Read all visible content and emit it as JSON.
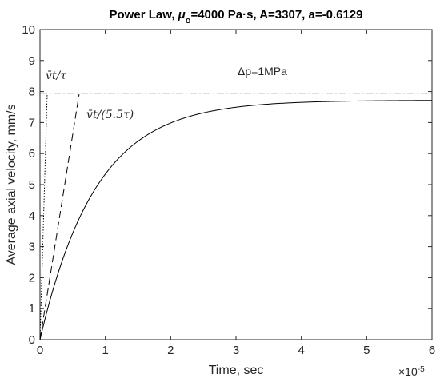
{
  "chart_data": {
    "type": "line",
    "title_prefix": "Power Law, ",
    "title_symbol": "μ",
    "title_subscript": "o",
    "title_suffix": "=4000 Pa·s, A=3307, a=-0.6129",
    "xlabel": "Time, sec",
    "ylabel": "Average axial velocity, mm/s",
    "x_exponent_base": "×10",
    "x_exponent_power": "-5",
    "xlim": [
      0,
      6
    ],
    "ylim": [
      0,
      10
    ],
    "xticks": [
      "0",
      "1",
      "2",
      "3",
      "4",
      "5",
      "6"
    ],
    "yticks": [
      "0",
      "1",
      "2",
      "3",
      "4",
      "5",
      "6",
      "7",
      "8",
      "9",
      "10"
    ],
    "grid": false,
    "annotations": {
      "pressure": "Δp=1MPa",
      "dotted_label_text": "v̄t/τ",
      "dashed_label_text": "v̄t/(5.5τ)"
    },
    "series": [
      {
        "style": "solid",
        "vmax": 7.72,
        "tau": 0.85
      },
      {
        "style": "dashdot",
        "value": 7.93
      },
      {
        "style": "dotted",
        "x": [
          0,
          0.11
        ],
        "y": [
          0,
          7.93
        ]
      },
      {
        "style": "dashed",
        "x": [
          0,
          0.6
        ],
        "y": [
          0,
          7.93
        ]
      }
    ]
  }
}
